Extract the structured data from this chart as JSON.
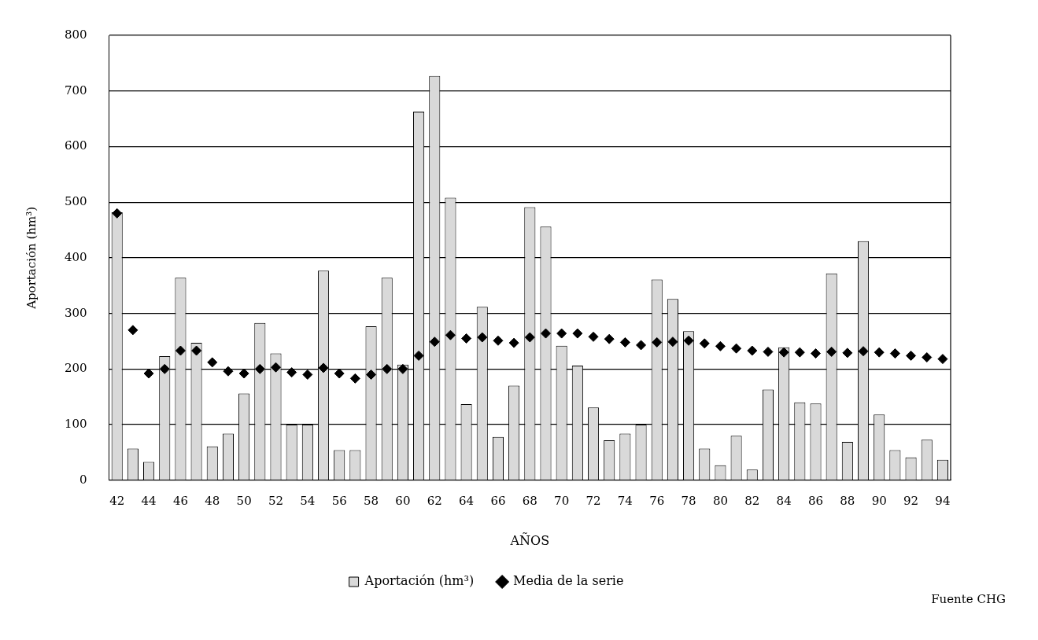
{
  "chart_data": {
    "type": "bar",
    "xlabel": "AÑOS",
    "ylabel": "Aportación (hm³)",
    "categories": [
      "42",
      null,
      "44",
      null,
      "46",
      null,
      "48",
      null,
      "50",
      null,
      "52",
      null,
      "54",
      null,
      "56",
      null,
      "58",
      null,
      "60",
      null,
      "62",
      null,
      "64",
      null,
      "66",
      null,
      "68",
      null,
      "70",
      null,
      "72",
      null,
      "74",
      null,
      "76",
      null,
      "78",
      null,
      "80",
      null,
      "82",
      null,
      "84",
      null,
      "86",
      null,
      "88",
      null,
      "90",
      null,
      "92",
      null,
      "94"
    ],
    "series": [
      {
        "name": "Aportación (hm³)",
        "color": "#d9d9d9",
        "values": [
          482,
          57,
          33,
          223,
          364,
          247,
          61,
          84,
          156,
          283,
          228,
          100,
          100,
          377,
          54,
          54,
          277,
          364,
          208,
          663,
          727,
          508,
          137,
          312,
          78,
          170,
          491,
          456,
          242,
          206,
          131,
          72,
          84,
          100,
          361,
          326,
          268,
          57,
          27,
          80,
          19,
          163,
          239,
          140,
          138,
          372,
          69,
          430,
          118,
          54,
          41,
          73,
          37
        ]
      },
      {
        "name": "Media de la serie",
        "type": "scatter",
        "color": "#000000",
        "values": [
          480,
          270,
          192,
          200,
          233,
          233,
          212,
          196,
          192,
          200,
          203,
          194,
          190,
          202,
          192,
          183,
          190,
          200,
          200,
          224,
          249,
          261,
          255,
          257,
          251,
          247,
          257,
          264,
          264,
          264,
          258,
          254,
          248,
          243,
          248,
          249,
          251,
          246,
          241,
          237,
          233,
          231,
          230,
          230,
          228,
          231,
          229,
          232,
          230,
          228,
          224,
          221,
          218
        ]
      }
    ],
    "ylim": [
      0,
      800
    ],
    "yticks": [
      0,
      100,
      200,
      300,
      400,
      500,
      600,
      700,
      800
    ],
    "grid": "y",
    "legend": "bottom",
    "marker": "diamond",
    "annotations": [
      "Fuente CHG"
    ]
  }
}
